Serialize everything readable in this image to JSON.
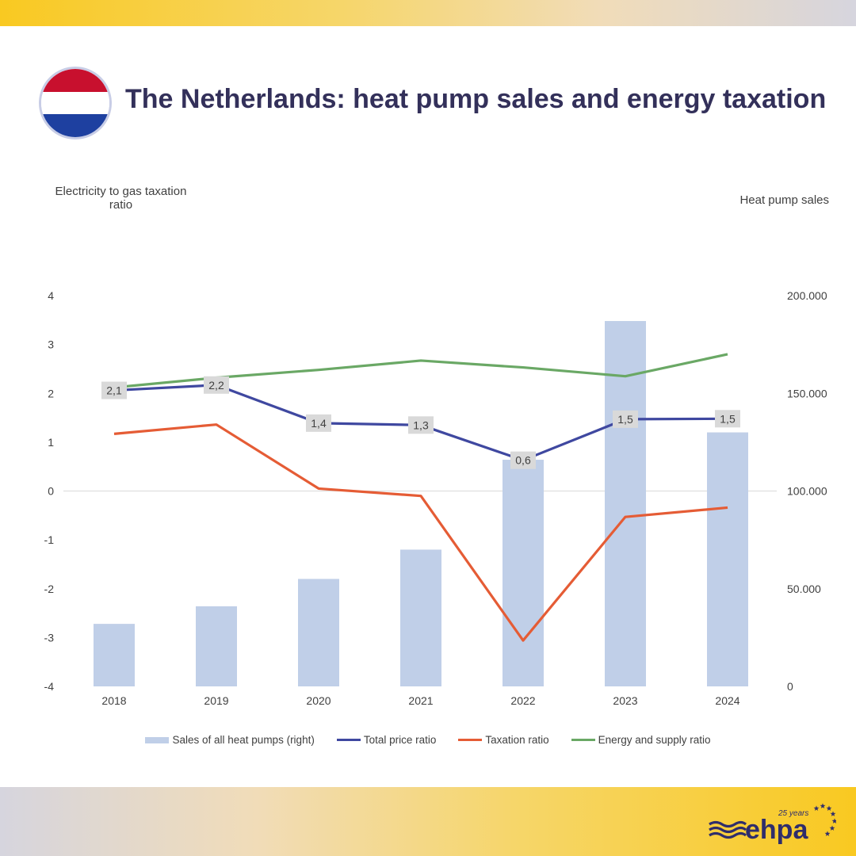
{
  "title": "The Netherlands: heat pump sales and energy taxation",
  "flag_colors": [
    "#c8102e",
    "#ffffff",
    "#1e40a0"
  ],
  "logo": {
    "text": "ehpa",
    "subtitle": "25 years"
  },
  "chart_data": {
    "type": "bar+line",
    "categories": [
      "2018",
      "2019",
      "2020",
      "2021",
      "2022",
      "2023",
      "2024"
    ],
    "left_axis": {
      "label": "Electricity to gas taxation ratio",
      "range": [
        -4,
        4
      ],
      "ticks": [
        "4",
        "3",
        "2",
        "1",
        "0",
        "-1",
        "-2",
        "-3",
        "-4"
      ]
    },
    "right_axis": {
      "label": "Heat pump sales",
      "range": [
        0,
        200000
      ],
      "ticks": [
        "200.000",
        "150.000",
        "100.000",
        "50.000",
        "0"
      ]
    },
    "series": [
      {
        "name": "Sales of all heat pumps (right)",
        "kind": "bar",
        "axis": "right",
        "color": "#c0cfe8",
        "values": [
          32000,
          41000,
          55000,
          70000,
          116000,
          187000,
          130000
        ]
      },
      {
        "name": "Total price ratio",
        "kind": "line",
        "axis": "left",
        "color": "#3f48a0",
        "values": [
          2.06,
          2.17,
          1.39,
          1.35,
          0.63,
          1.47,
          1.48
        ],
        "labels": [
          "2,1",
          "2,2",
          "1,4",
          "1,3",
          "0,6",
          "1,5",
          "1,5"
        ]
      },
      {
        "name": "Taxation ratio",
        "kind": "line",
        "axis": "left",
        "color": "#e55c35",
        "values": [
          1.17,
          1.36,
          0.05,
          -0.1,
          -3.06,
          -0.53,
          -0.34
        ]
      },
      {
        "name": "Energy and supply ratio",
        "kind": "line",
        "axis": "left",
        "color": "#6aa865",
        "values": [
          2.12,
          2.32,
          2.48,
          2.67,
          2.53,
          2.35,
          2.8
        ]
      }
    ],
    "legend_position": "bottom"
  }
}
